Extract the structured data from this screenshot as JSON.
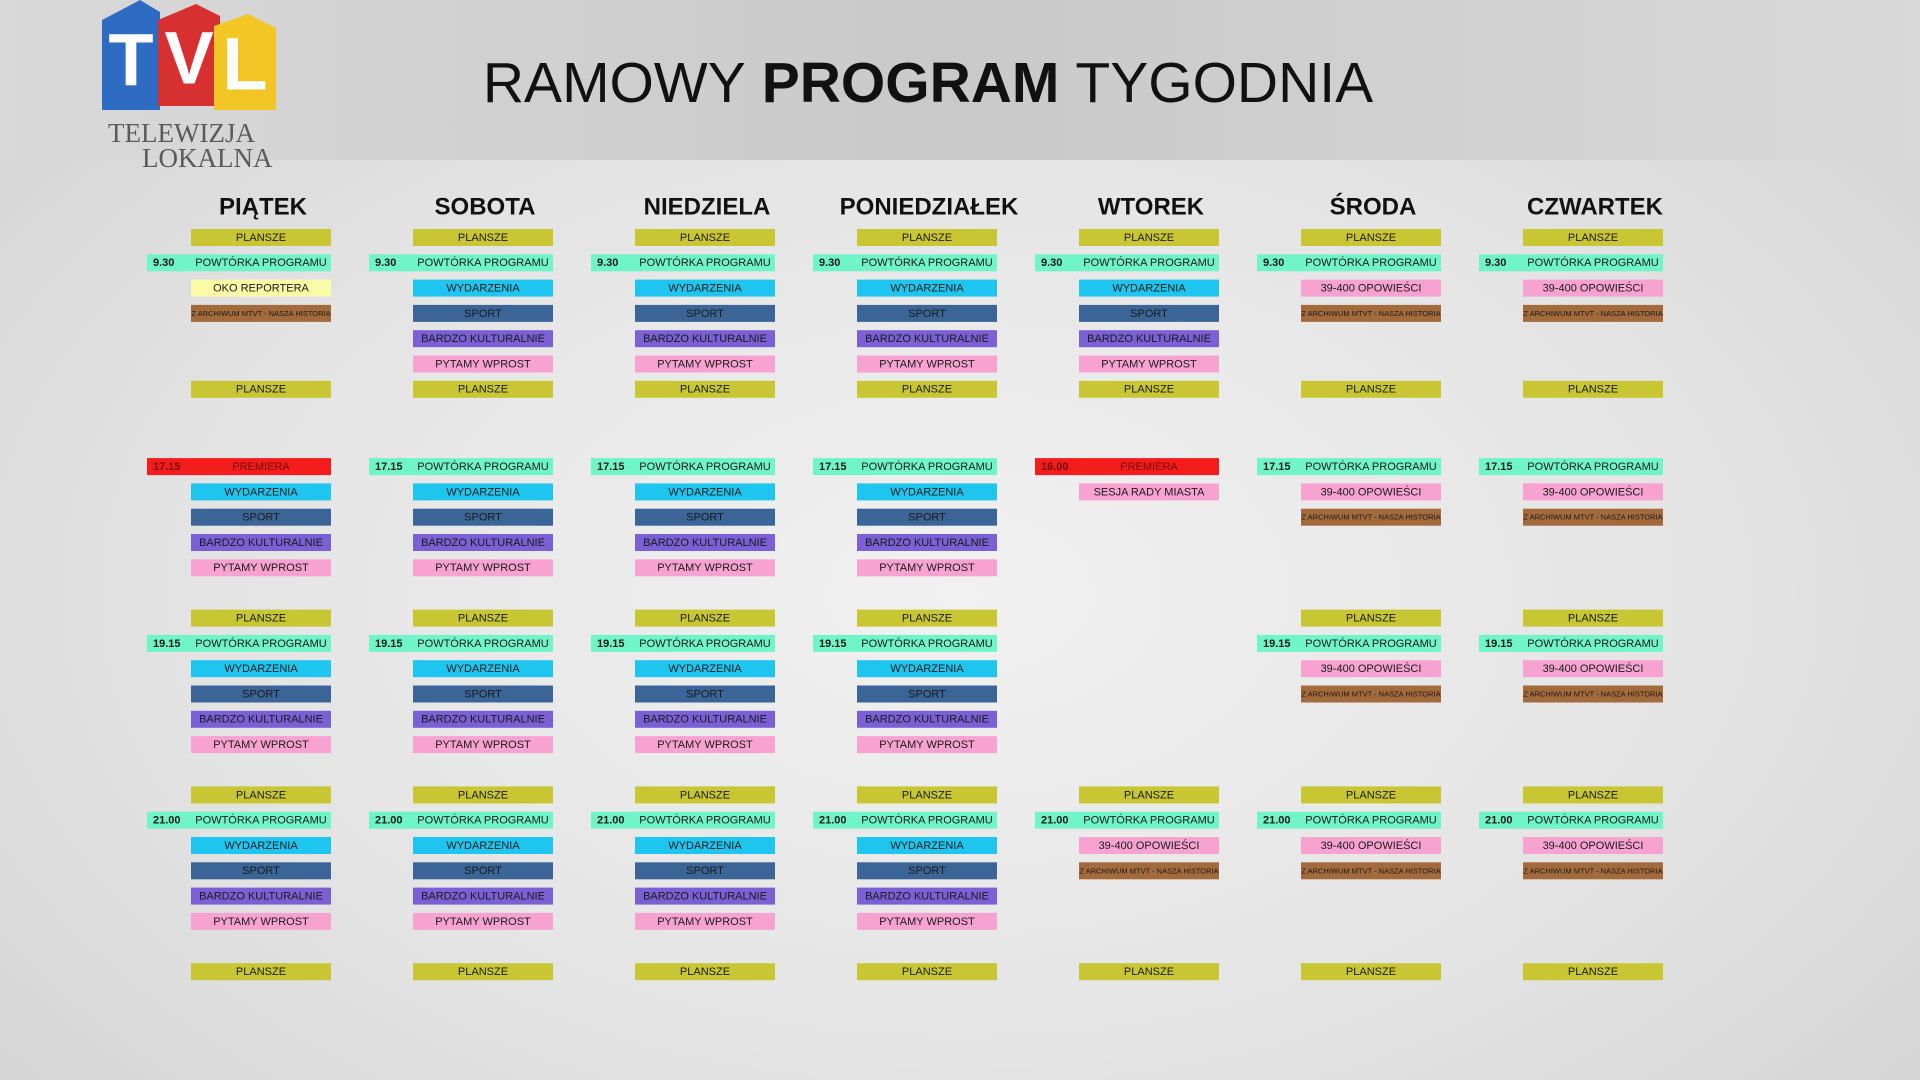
{
  "logo": {
    "letters": [
      "T",
      "V",
      "L"
    ],
    "line1": "TELEWIZJA",
    "line2": "LOKALNA"
  },
  "title": {
    "parts": [
      "RAMOWY",
      "PROGRAM",
      "TYGODNIA"
    ]
  },
  "days": [
    {
      "name": "PIĄTEK",
      "slots": [
        {
          "label": "PLANSZE",
          "color": "#c8c733"
        },
        {
          "time": "9.30",
          "label": "POWTÓRKA PROGRAMU",
          "color": "#6ff5c8"
        },
        {
          "label": "OKO REPORTERA",
          "color": "#fbfaa6"
        },
        {
          "label": "Z ARCHIWUM MTVT - NASZA HISTORIA",
          "color": "#a36a3c"
        },
        null,
        null,
        {
          "label": "PLANSZE",
          "color": "#c8c733"
        },
        {
          "time": "17.15",
          "label": "PREMIERA",
          "color": "#f41c1c"
        },
        {
          "label": "WYDARZENIA",
          "color": "#1dc5ef"
        },
        {
          "label": "SPORT",
          "color": "#3b6596"
        },
        {
          "label": "BARDZO KULTURALNIE",
          "color": "#7a60d4"
        },
        {
          "label": "PYTAMY WPROST",
          "color": "#f8a2d2"
        },
        {
          "label": "PLANSZE",
          "color": "#c8c733"
        },
        {
          "time": "19.15",
          "label": "POWTÓRKA PROGRAMU",
          "color": "#6ff5c8"
        },
        {
          "label": "WYDARZENIA",
          "color": "#1dc5ef"
        },
        {
          "label": "SPORT",
          "color": "#3b6596"
        },
        {
          "label": "BARDZO KULTURALNIE",
          "color": "#7a60d4"
        },
        {
          "label": "PYTAMY WPROST",
          "color": "#f8a2d2"
        },
        {
          "label": "PLANSZE",
          "color": "#c8c733"
        },
        {
          "time": "21.00",
          "label": "POWTÓRKA PROGRAMU",
          "color": "#6ff5c8"
        },
        {
          "label": "WYDARZENIA",
          "color": "#1dc5ef"
        },
        {
          "label": "SPORT",
          "color": "#3b6596"
        },
        {
          "label": "BARDZO KULTURALNIE",
          "color": "#7a60d4"
        },
        {
          "label": "PYTAMY WPROST",
          "color": "#f8a2d2"
        },
        {
          "label": "PLANSZE",
          "color": "#c8c733"
        }
      ]
    },
    {
      "name": "SOBOTA",
      "slots": [
        {
          "label": "PLANSZE",
          "color": "#c8c733"
        },
        {
          "time": "9.30",
          "label": "POWTÓRKA PROGRAMU",
          "color": "#6ff5c8"
        },
        {
          "label": "WYDARZENIA",
          "color": "#1dc5ef"
        },
        {
          "label": "SPORT",
          "color": "#3b6596"
        },
        {
          "label": "BARDZO KULTURALNIE",
          "color": "#7a60d4"
        },
        {
          "label": "PYTAMY WPROST",
          "color": "#f8a2d2"
        },
        {
          "label": "PLANSZE",
          "color": "#c8c733"
        },
        {
          "time": "17.15",
          "label": "POWTÓRKA PROGRAMU",
          "color": "#6ff5c8"
        },
        {
          "label": "WYDARZENIA",
          "color": "#1dc5ef"
        },
        {
          "label": "SPORT",
          "color": "#3b6596"
        },
        {
          "label": "BARDZO KULTURALNIE",
          "color": "#7a60d4"
        },
        {
          "label": "PYTAMY WPROST",
          "color": "#f8a2d2"
        },
        {
          "label": "PLANSZE",
          "color": "#c8c733"
        },
        {
          "time": "19.15",
          "label": "POWTÓRKA PROGRAMU",
          "color": "#6ff5c8"
        },
        {
          "label": "WYDARZENIA",
          "color": "#1dc5ef"
        },
        {
          "label": "SPORT",
          "color": "#3b6596"
        },
        {
          "label": "BARDZO KULTURALNIE",
          "color": "#7a60d4"
        },
        {
          "label": "PYTAMY WPROST",
          "color": "#f8a2d2"
        },
        {
          "label": "PLANSZE",
          "color": "#c8c733"
        },
        {
          "time": "21.00",
          "label": "POWTÓRKA PROGRAMU",
          "color": "#6ff5c8"
        },
        {
          "label": "WYDARZENIA",
          "color": "#1dc5ef"
        },
        {
          "label": "SPORT",
          "color": "#3b6596"
        },
        {
          "label": "BARDZO KULTURALNIE",
          "color": "#7a60d4"
        },
        {
          "label": "PYTAMY WPROST",
          "color": "#f8a2d2"
        },
        {
          "label": "PLANSZE",
          "color": "#c8c733"
        }
      ]
    },
    {
      "name": "NIEDZIELA",
      "slots": [
        {
          "label": "PLANSZE",
          "color": "#c8c733"
        },
        {
          "time": "9.30",
          "label": "POWTÓRKA PROGRAMU",
          "color": "#6ff5c8"
        },
        {
          "label": "WYDARZENIA",
          "color": "#1dc5ef"
        },
        {
          "label": "SPORT",
          "color": "#3b6596"
        },
        {
          "label": "BARDZO KULTURALNIE",
          "color": "#7a60d4"
        },
        {
          "label": "PYTAMY WPROST",
          "color": "#f8a2d2"
        },
        {
          "label": "PLANSZE",
          "color": "#c8c733"
        },
        {
          "time": "17.15",
          "label": "POWTÓRKA PROGRAMU",
          "color": "#6ff5c8"
        },
        {
          "label": "WYDARZENIA",
          "color": "#1dc5ef"
        },
        {
          "label": "SPORT",
          "color": "#3b6596"
        },
        {
          "label": "BARDZO KULTURALNIE",
          "color": "#7a60d4"
        },
        {
          "label": "PYTAMY WPROST",
          "color": "#f8a2d2"
        },
        {
          "label": "PLANSZE",
          "color": "#c8c733"
        },
        {
          "time": "19.15",
          "label": "POWTÓRKA PROGRAMU",
          "color": "#6ff5c8"
        },
        {
          "label": "WYDARZENIA",
          "color": "#1dc5ef"
        },
        {
          "label": "SPORT",
          "color": "#3b6596"
        },
        {
          "label": "BARDZO KULTURALNIE",
          "color": "#7a60d4"
        },
        {
          "label": "PYTAMY WPROST",
          "color": "#f8a2d2"
        },
        {
          "label": "PLANSZE",
          "color": "#c8c733"
        },
        {
          "time": "21.00",
          "label": "POWTÓRKA PROGRAMU",
          "color": "#6ff5c8"
        },
        {
          "label": "WYDARZENIA",
          "color": "#1dc5ef"
        },
        {
          "label": "SPORT",
          "color": "#3b6596"
        },
        {
          "label": "BARDZO KULTURALNIE",
          "color": "#7a60d4"
        },
        {
          "label": "PYTAMY WPROST",
          "color": "#f8a2d2"
        },
        {
          "label": "PLANSZE",
          "color": "#c8c733"
        }
      ]
    },
    {
      "name": "PONIEDZIAŁEK",
      "slots": [
        {
          "label": "PLANSZE",
          "color": "#c8c733"
        },
        {
          "time": "9.30",
          "label": "POWTÓRKA PROGRAMU",
          "color": "#6ff5c8"
        },
        {
          "label": "WYDARZENIA",
          "color": "#1dc5ef"
        },
        {
          "label": "SPORT",
          "color": "#3b6596"
        },
        {
          "label": "BARDZO KULTURALNIE",
          "color": "#7a60d4"
        },
        {
          "label": "PYTAMY WPROST",
          "color": "#f8a2d2"
        },
        {
          "label": "PLANSZE",
          "color": "#c8c733"
        },
        {
          "time": "17.15",
          "label": "POWTÓRKA PROGRAMU",
          "color": "#6ff5c8"
        },
        {
          "label": "WYDARZENIA",
          "color": "#1dc5ef"
        },
        {
          "label": "SPORT",
          "color": "#3b6596"
        },
        {
          "label": "BARDZO KULTURALNIE",
          "color": "#7a60d4"
        },
        {
          "label": "PYTAMY WPROST",
          "color": "#f8a2d2"
        },
        {
          "label": "PLANSZE",
          "color": "#c8c733"
        },
        {
          "time": "19.15",
          "label": "POWTÓRKA PROGRAMU",
          "color": "#6ff5c8"
        },
        {
          "label": "WYDARZENIA",
          "color": "#1dc5ef"
        },
        {
          "label": "SPORT",
          "color": "#3b6596"
        },
        {
          "label": "BARDZO KULTURALNIE",
          "color": "#7a60d4"
        },
        {
          "label": "PYTAMY WPROST",
          "color": "#f8a2d2"
        },
        {
          "label": "PLANSZE",
          "color": "#c8c733"
        },
        {
          "time": "21.00",
          "label": "POWTÓRKA PROGRAMU",
          "color": "#6ff5c8"
        },
        {
          "label": "WYDARZENIA",
          "color": "#1dc5ef"
        },
        {
          "label": "SPORT",
          "color": "#3b6596"
        },
        {
          "label": "BARDZO KULTURALNIE",
          "color": "#7a60d4"
        },
        {
          "label": "PYTAMY WPROST",
          "color": "#f8a2d2"
        },
        {
          "label": "PLANSZE",
          "color": "#c8c733"
        }
      ]
    },
    {
      "name": "WTOREK",
      "slots": [
        {
          "label": "PLANSZE",
          "color": "#c8c733"
        },
        {
          "time": "9.30",
          "label": "POWTÓRKA PROGRAMU",
          "color": "#6ff5c8"
        },
        {
          "label": "WYDARZENIA",
          "color": "#1dc5ef"
        },
        {
          "label": "SPORT",
          "color": "#3b6596"
        },
        {
          "label": "BARDZO KULTURALNIE",
          "color": "#7a60d4"
        },
        {
          "label": "PYTAMY WPROST",
          "color": "#f8a2d2"
        },
        {
          "label": "PLANSZE",
          "color": "#c8c733"
        },
        {
          "time": "16.00",
          "label": "PREMIERA",
          "color": "#f41c1c"
        },
        {
          "label": "SESJA RADY MIASTA",
          "color": "#f8a2d2"
        },
        null,
        null,
        null,
        null,
        null,
        null,
        null,
        null,
        null,
        {
          "label": "PLANSZE",
          "color": "#c8c733"
        },
        {
          "time": "21.00",
          "label": "POWTÓRKA PROGRAMU",
          "color": "#6ff5c8"
        },
        {
          "label": "39-400 OPOWIEŚCI",
          "color": "#f8a2d2"
        },
        {
          "label": "Z ARCHIWUM MTVT - NASZA HISTORIA",
          "color": "#a36a3c"
        },
        null,
        null,
        {
          "label": "PLANSZE",
          "color": "#c8c733"
        }
      ]
    },
    {
      "name": "ŚRODA",
      "slots": [
        {
          "label": "PLANSZE",
          "color": "#c8c733"
        },
        {
          "time": "9.30",
          "label": "POWTÓRKA PROGRAMU",
          "color": "#6ff5c8"
        },
        {
          "label": "39-400 OPOWIEŚCI",
          "color": "#f8a2d2"
        },
        {
          "label": "Z ARCHIWUM MTVT - NASZA HISTORIA",
          "color": "#a36a3c"
        },
        null,
        null,
        {
          "label": "PLANSZE",
          "color": "#c8c733"
        },
        {
          "time": "17.15",
          "label": "POWTÓRKA PROGRAMU",
          "color": "#6ff5c8"
        },
        {
          "label": "39-400 OPOWIEŚCI",
          "color": "#f8a2d2"
        },
        {
          "label": "Z ARCHIWUM MTVT - NASZA HISTORIA",
          "color": "#a36a3c"
        },
        null,
        null,
        {
          "label": "PLANSZE",
          "color": "#c8c733"
        },
        {
          "time": "19.15",
          "label": "POWTÓRKA PROGRAMU",
          "color": "#6ff5c8"
        },
        {
          "label": "39-400 OPOWIEŚCI",
          "color": "#f8a2d2"
        },
        {
          "label": "Z ARCHIWUM MTVT - NASZA HISTORIA",
          "color": "#a36a3c"
        },
        null,
        null,
        {
          "label": "PLANSZE",
          "color": "#c8c733"
        },
        {
          "time": "21.00",
          "label": "POWTÓRKA PROGRAMU",
          "color": "#6ff5c8"
        },
        {
          "label": "39-400 OPOWIEŚCI",
          "color": "#f8a2d2"
        },
        {
          "label": "Z ARCHIWUM MTVT - NASZA HISTORIA",
          "color": "#a36a3c"
        },
        null,
        null,
        {
          "label": "PLANSZE",
          "color": "#c8c733"
        }
      ]
    },
    {
      "name": "CZWARTEK",
      "slots": [
        {
          "label": "PLANSZE",
          "color": "#c8c733"
        },
        {
          "time": "9.30",
          "label": "POWTÓRKA PROGRAMU",
          "color": "#6ff5c8"
        },
        {
          "label": "39-400 OPOWIEŚCI",
          "color": "#f8a2d2"
        },
        {
          "label": "Z ARCHIWUM MTVT - NASZA HISTORIA",
          "color": "#a36a3c"
        },
        null,
        null,
        {
          "label": "PLANSZE",
          "color": "#c8c733"
        },
        {
          "time": "17.15",
          "label": "POWTÓRKA PROGRAMU",
          "color": "#6ff5c8"
        },
        {
          "label": "39-400 OPOWIEŚCI",
          "color": "#f8a2d2"
        },
        {
          "label": "Z ARCHIWUM MTVT - NASZA HISTORIA",
          "color": "#a36a3c"
        },
        null,
        null,
        {
          "label": "PLANSZE",
          "color": "#c8c733"
        },
        {
          "time": "19.15",
          "label": "POWTÓRKA PROGRAMU",
          "color": "#6ff5c8"
        },
        {
          "label": "39-400 OPOWIEŚCI",
          "color": "#f8a2d2"
        },
        {
          "label": "Z ARCHIWUM MTVT - NASZA HISTORIA",
          "color": "#a36a3c"
        },
        null,
        null,
        {
          "label": "PLANSZE",
          "color": "#c8c733"
        },
        {
          "time": "21.00",
          "label": "POWTÓRKA PROGRAMU",
          "color": "#6ff5c8"
        },
        {
          "label": "39-400 OPOWIEŚCI",
          "color": "#f8a2d2"
        },
        {
          "label": "Z ARCHIWUM MTVT - NASZA HISTORIA",
          "color": "#a36a3c"
        },
        null,
        null,
        {
          "label": "PLANSZE",
          "color": "#c8c733"
        }
      ]
    }
  ]
}
